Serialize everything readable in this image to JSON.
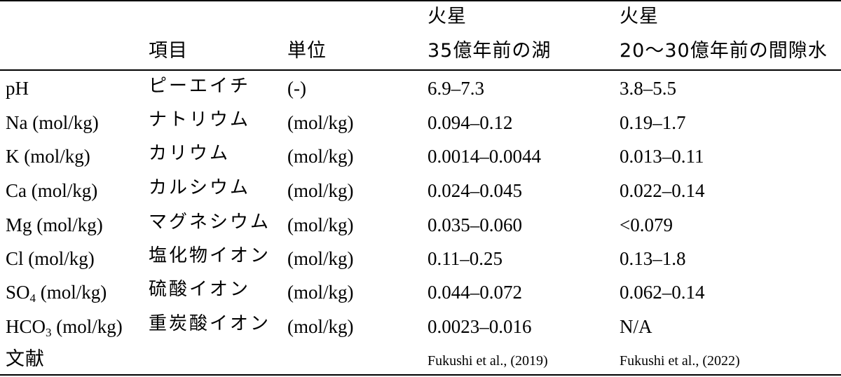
{
  "headers": {
    "item": "項目",
    "unit": "単位",
    "col_a_line1": "火星",
    "col_a_line2": "35億年前の湖",
    "col_b_line1": "火星",
    "col_b_line2": "20〜30億年前の間隙水"
  },
  "rows": [
    {
      "param": "pH",
      "param_sub": "",
      "param_tail": "",
      "name": "ピーエイチ",
      "unit": "(-)",
      "a": "6.9–7.3",
      "b": "3.8–5.5"
    },
    {
      "param": "Na (mol/kg)",
      "param_sub": "",
      "param_tail": "",
      "name": "ナトリウム",
      "unit": "(mol/kg)",
      "a": "0.094–0.12",
      "b": "0.19–1.7"
    },
    {
      "param": "K (mol/kg)",
      "param_sub": "",
      "param_tail": "",
      "name": "カリウム",
      "unit": "(mol/kg)",
      "a": "0.0014–0.0044",
      "b": "0.013–0.11"
    },
    {
      "param": "Ca (mol/kg)",
      "param_sub": "",
      "param_tail": "",
      "name": "カルシウム",
      "unit": "(mol/kg)",
      "a": "0.024–0.045",
      "b": "0.022–0.14"
    },
    {
      "param": "Mg (mol/kg)",
      "param_sub": "",
      "param_tail": "",
      "name": "マグネシウム",
      "unit": "(mol/kg)",
      "a": "0.035–0.060",
      "b": "<0.079"
    },
    {
      "param": "Cl (mol/kg)",
      "param_sub": "",
      "param_tail": "",
      "name": "塩化物イオン",
      "unit": "(mol/kg)",
      "a": "0.11–0.25",
      "b": "0.13–1.8"
    },
    {
      "param": "SO",
      "param_sub": "4",
      "param_tail": " (mol/kg)",
      "name": "硫酸イオン",
      "unit": "(mol/kg)",
      "a": "0.044–0.072",
      "b": "0.062–0.14"
    },
    {
      "param": "HCO",
      "param_sub": "3",
      "param_tail": " (mol/kg)",
      "name": "重炭酸イオン",
      "unit": "(mol/kg)",
      "a": "0.0023–0.016",
      "b": "N/A"
    }
  ],
  "references": {
    "label": "文献",
    "a": "Fukushi et al., (2019)",
    "b": "Fukushi et al., (2022)"
  }
}
